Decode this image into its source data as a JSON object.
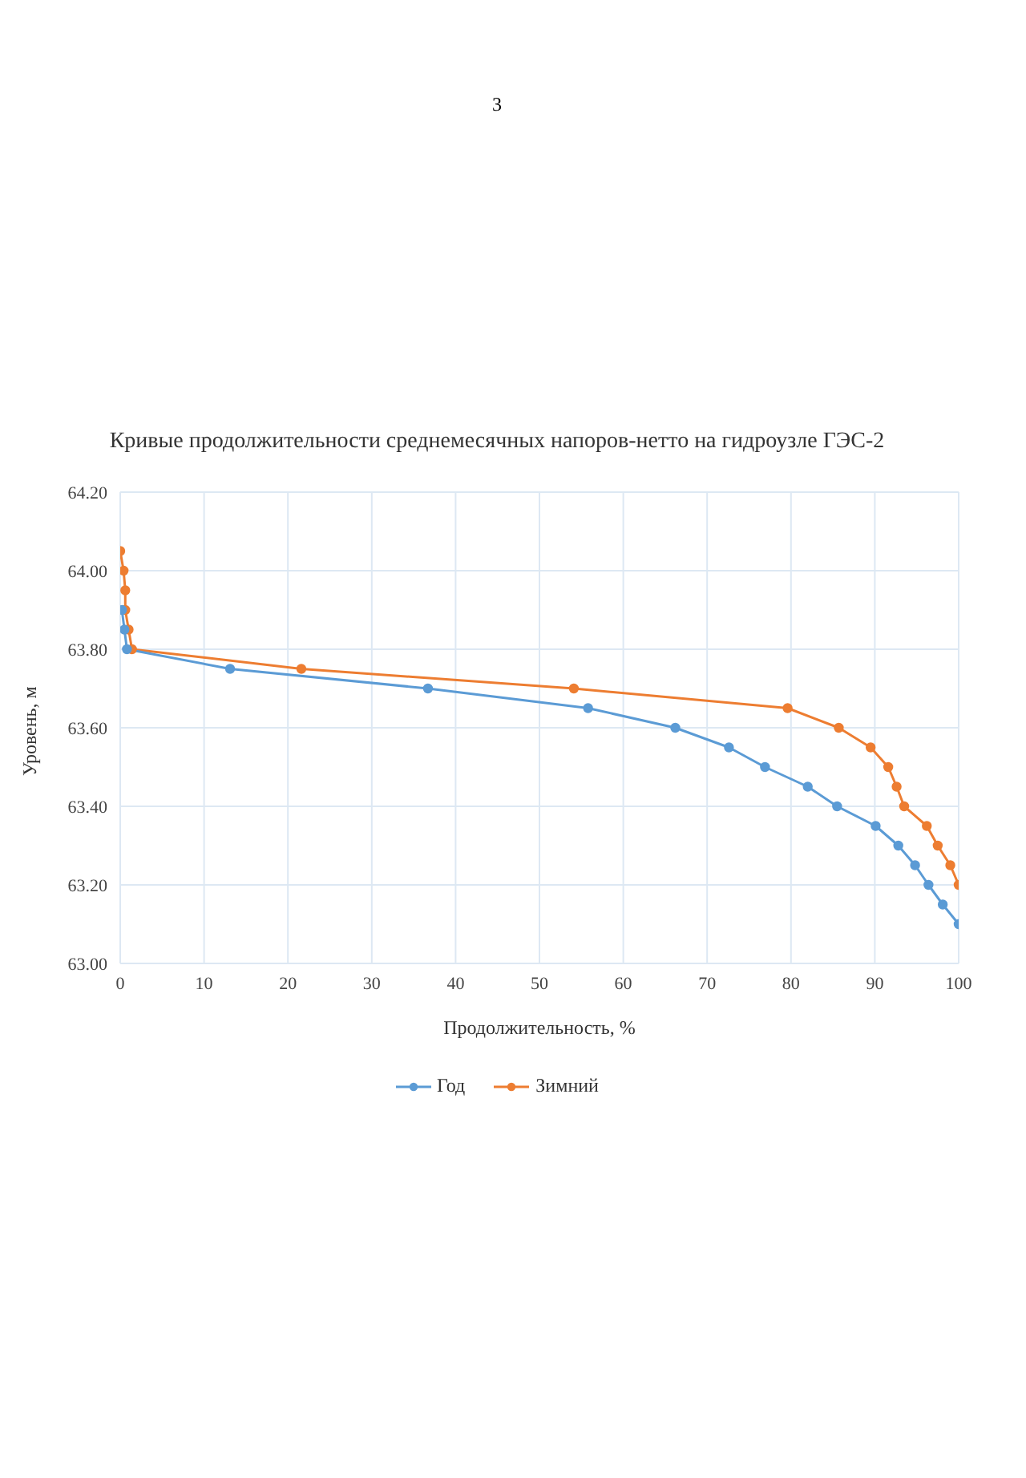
{
  "chart_data": {
    "type": "line",
    "title": "Кривые продолжительности среднемесячных напоров-нетто на гидроузле ГЭС-2",
    "xlabel": "Продолжительность, %",
    "ylabel": "Уровень, м",
    "annotations": [
      "3"
    ],
    "series": [
      {
        "name": "Год",
        "color": "#5b9bd5",
        "x": [
          0.2,
          0.5,
          0.8,
          13.1,
          36.7,
          55.8,
          66.2,
          72.6,
          76.9,
          82.0,
          85.5,
          90.1,
          92.8,
          94.8,
          96.4,
          98.1,
          100
        ],
        "values": [
          63.9,
          63.85,
          63.8,
          63.75,
          63.7,
          63.65,
          63.6,
          63.55,
          63.5,
          63.45,
          63.4,
          63.35,
          63.3,
          63.25,
          63.2,
          63.15,
          63.1
        ]
      },
      {
        "name": "Зимний",
        "color": "#ed7d31",
        "x": [
          0,
          0.4,
          0.6,
          0.6,
          1.0,
          1.4,
          21.6,
          54.1,
          79.6,
          85.7,
          89.5,
          91.6,
          92.6,
          93.5,
          96.2,
          97.5,
          99.0,
          100
        ],
        "values": [
          64.05,
          64.0,
          63.95,
          63.9,
          63.85,
          63.8,
          63.75,
          63.7,
          63.65,
          63.6,
          63.55,
          63.5,
          63.45,
          63.4,
          63.35,
          63.3,
          63.25,
          63.2
        ]
      }
    ],
    "xlim": [
      0,
      100
    ],
    "xticks": [
      0,
      10,
      20,
      30,
      40,
      50,
      60,
      70,
      80,
      90,
      100
    ],
    "ylim": [
      63.0,
      64.2
    ],
    "yticks": [
      {
        "value": 63.0,
        "label": "63.00"
      },
      {
        "value": 63.2,
        "label": "63.20"
      },
      {
        "value": 63.4,
        "label": "63.40"
      },
      {
        "value": 63.6,
        "label": "63.60"
      },
      {
        "value": 63.8,
        "label": "63.80"
      },
      {
        "value": 64.0,
        "label": "64.00"
      },
      {
        "value": 64.2,
        "label": "64.20"
      }
    ],
    "grid": true,
    "legend": "bottom",
    "marker": "circle",
    "line_style": "solid"
  }
}
